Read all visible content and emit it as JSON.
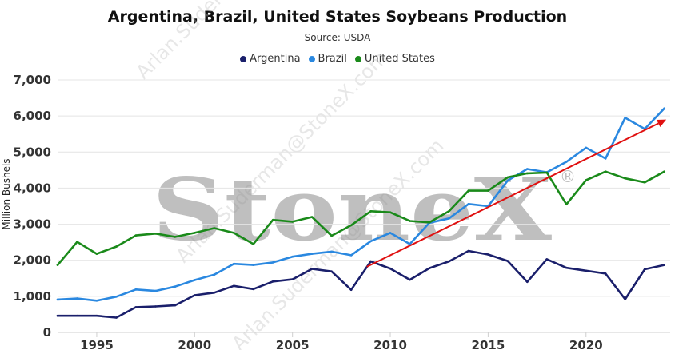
{
  "chart_data": {
    "type": "line",
    "title": "Argentina, Brazil, United States Soybeans Production",
    "subtitle": "Source: USDA",
    "ylabel": "Million Bushels",
    "xlabel": "",
    "xlim": [
      1993,
      2024.3
    ],
    "ylim": [
      0,
      7000
    ],
    "y_ticks": [
      0,
      1000,
      2000,
      3000,
      4000,
      5000,
      6000,
      7000
    ],
    "y_tick_labels": [
      "0",
      "1,000",
      "2,000",
      "3,000",
      "4,000",
      "5,000",
      "6,000",
      "7,000"
    ],
    "x_ticks": [
      1995,
      2000,
      2005,
      2010,
      2015,
      2020
    ],
    "x_tick_labels": [
      "1995",
      "2000",
      "2005",
      "2010",
      "2015",
      "2020"
    ],
    "grid": "horizontal",
    "legend_position": "top-center",
    "x": [
      1993,
      1994,
      1995,
      1996,
      1997,
      1998,
      1999,
      2000,
      2001,
      2002,
      2003,
      2004,
      2005,
      2006,
      2007,
      2008,
      2009,
      2010,
      2011,
      2012,
      2013,
      2014,
      2015,
      2016,
      2017,
      2018,
      2019,
      2020,
      2021,
      2022,
      2023,
      2024
    ],
    "series": [
      {
        "name": "Argentina",
        "color": "#1a1f6b",
        "values": [
          460,
          460,
          460,
          410,
          700,
          720,
          750,
          1030,
          1100,
          1290,
          1200,
          1410,
          1470,
          1760,
          1690,
          1180,
          1970,
          1770,
          1460,
          1780,
          1970,
          2260,
          2160,
          1980,
          1400,
          2030,
          1790,
          1710,
          1630,
          920,
          1750,
          1870
        ]
      },
      {
        "name": "Brazil",
        "color": "#2a88e0",
        "values": [
          910,
          940,
          880,
          990,
          1190,
          1150,
          1270,
          1450,
          1600,
          1900,
          1870,
          1940,
          2100,
          2180,
          2240,
          2140,
          2530,
          2760,
          2450,
          3040,
          3160,
          3560,
          3500,
          4210,
          4530,
          4440,
          4730,
          5120,
          4820,
          5950,
          5640,
          6210
        ]
      },
      {
        "name": "United States",
        "color": "#1a8a1a",
        "values": [
          1870,
          2510,
          2180,
          2380,
          2690,
          2740,
          2650,
          2760,
          2890,
          2760,
          2450,
          3120,
          3070,
          3200,
          2680,
          2970,
          3360,
          3330,
          3090,
          3050,
          3360,
          3930,
          3930,
          4300,
          4410,
          4430,
          3550,
          4220,
          4460,
          4270,
          4160,
          4460
        ]
      }
    ],
    "annotations": [
      {
        "type": "trend-arrow",
        "color": "#e01010",
        "x1": 2008.8,
        "y1": 1820,
        "x2": 2024.1,
        "y2": 5900
      }
    ],
    "watermark": {
      "brand": "StoneX",
      "mark": "®",
      "diagonal_texts": [
        "Arlan.Suderman@StoneX.com",
        "Arlan.Suderman@StoneX.com",
        "Arlan.Suderman@StoneX.com"
      ]
    }
  }
}
